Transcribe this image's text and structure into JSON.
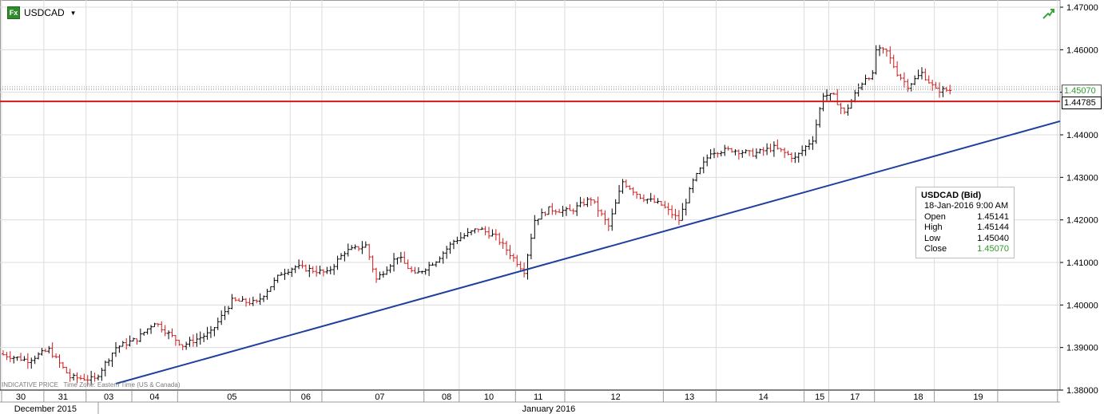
{
  "header": {
    "symbol": "USDCAD",
    "fx_badge": "Fx"
  },
  "footer": {
    "indicative": "INDICATIVE PRICE",
    "timezone": "Time Zone: Eastern Time (US & Canada)"
  },
  "info_box": {
    "title": "USDCAD (Bid)",
    "datetime": "18-Jan-2016 9:00 AM",
    "rows": [
      {
        "label": "Open",
        "value": "1.45141"
      },
      {
        "label": "High",
        "value": "1.45144"
      },
      {
        "label": "Low",
        "value": "1.45040"
      },
      {
        "label": "Close",
        "value": "1.45070"
      }
    ]
  },
  "price_tag": "1.45070",
  "level_tag": "1.44785",
  "colors": {
    "up": "#000000",
    "down": "#d11a1a",
    "support": "#1f3f9f",
    "resistance": "#d11a1a",
    "grid": "#dcdcdc",
    "close_green": "#2e9b2e"
  },
  "chart_data": {
    "type": "ohlc",
    "ylim": [
      1.38,
      1.47
    ],
    "y_ticks": [
      "1.38000",
      "1.39000",
      "1.40000",
      "1.41000",
      "1.42000",
      "1.43000",
      "1.44000",
      "1.45000",
      "1.46000",
      "1.47000"
    ],
    "x_labels": [
      {
        "label": "30",
        "slot": 5
      },
      {
        "label": "31",
        "slot": 17
      },
      {
        "label": "03",
        "slot": 30
      },
      {
        "label": "04",
        "slot": 43
      },
      {
        "label": "05",
        "slot": 65
      },
      {
        "label": "06",
        "slot": 86
      },
      {
        "label": "07",
        "slot": 107
      },
      {
        "label": "08",
        "slot": 126
      },
      {
        "label": "10",
        "slot": 138
      },
      {
        "label": "11",
        "slot": 152
      },
      {
        "label": "12",
        "slot": 174
      },
      {
        "label": "13",
        "slot": 195
      },
      {
        "label": "14",
        "slot": 216
      },
      {
        "label": "15",
        "slot": 232
      },
      {
        "label": "17",
        "slot": 242
      },
      {
        "label": "18",
        "slot": 260
      },
      {
        "label": "19",
        "slot": 277
      }
    ],
    "month_labels": [
      {
        "label": "December 2015",
        "slot": 12
      },
      {
        "label": "January 2016",
        "slot": 155
      }
    ],
    "key_prices": [
      {
        "x": 0,
        "price": 1.3885
      },
      {
        "x": 8,
        "price": 1.387
      },
      {
        "x": 14,
        "price": 1.3895
      },
      {
        "x": 20,
        "price": 1.383
      },
      {
        "x": 27,
        "price": 1.3825
      },
      {
        "x": 33,
        "price": 1.39
      },
      {
        "x": 39,
        "price": 1.392
      },
      {
        "x": 44,
        "price": 1.396
      },
      {
        "x": 52,
        "price": 1.3905
      },
      {
        "x": 60,
        "price": 1.3935
      },
      {
        "x": 66,
        "price": 1.401
      },
      {
        "x": 73,
        "price": 1.4005
      },
      {
        "x": 80,
        "price": 1.4075
      },
      {
        "x": 84,
        "price": 1.409
      },
      {
        "x": 93,
        "price": 1.4075
      },
      {
        "x": 98,
        "price": 1.4125
      },
      {
        "x": 104,
        "price": 1.414
      },
      {
        "x": 107,
        "price": 1.406
      },
      {
        "x": 113,
        "price": 1.4115
      },
      {
        "x": 118,
        "price": 1.407
      },
      {
        "x": 124,
        "price": 1.4105
      },
      {
        "x": 129,
        "price": 1.415
      },
      {
        "x": 136,
        "price": 1.418
      },
      {
        "x": 141,
        "price": 1.416
      },
      {
        "x": 146,
        "price": 1.411
      },
      {
        "x": 149,
        "price": 1.408
      },
      {
        "x": 152,
        "price": 1.42
      },
      {
        "x": 156,
        "price": 1.4225
      },
      {
        "x": 162,
        "price": 1.422
      },
      {
        "x": 168,
        "price": 1.425
      },
      {
        "x": 173,
        "price": 1.4185
      },
      {
        "x": 177,
        "price": 1.429
      },
      {
        "x": 182,
        "price": 1.4255
      },
      {
        "x": 188,
        "price": 1.4235
      },
      {
        "x": 193,
        "price": 1.42
      },
      {
        "x": 197,
        "price": 1.429
      },
      {
        "x": 202,
        "price": 1.436
      },
      {
        "x": 208,
        "price": 1.4365
      },
      {
        "x": 214,
        "price": 1.4355
      },
      {
        "x": 220,
        "price": 1.437
      },
      {
        "x": 226,
        "price": 1.4345
      },
      {
        "x": 231,
        "price": 1.439
      },
      {
        "x": 234,
        "price": 1.4495
      },
      {
        "x": 237,
        "price": 1.449
      },
      {
        "x": 240,
        "price": 1.445
      },
      {
        "x": 244,
        "price": 1.451
      },
      {
        "x": 246,
        "price": 1.4535
      },
      {
        "x": 248,
        "price": 1.454
      },
      {
        "x": 249,
        "price": 1.46
      },
      {
        "x": 252,
        "price": 1.4595
      },
      {
        "x": 255,
        "price": 1.4545
      },
      {
        "x": 258,
        "price": 1.4515
      },
      {
        "x": 262,
        "price": 1.4545
      },
      {
        "x": 266,
        "price": 1.4505
      },
      {
        "x": 270,
        "price": 1.4505
      }
    ],
    "bar_count": 270,
    "trendline": {
      "from": {
        "slot": 32,
        "price": 1.3815
      },
      "to": {
        "slot": "edge",
        "price": 1.4432
      }
    },
    "horizontal_level": 1.44785,
    "last_close": 1.4507
  }
}
